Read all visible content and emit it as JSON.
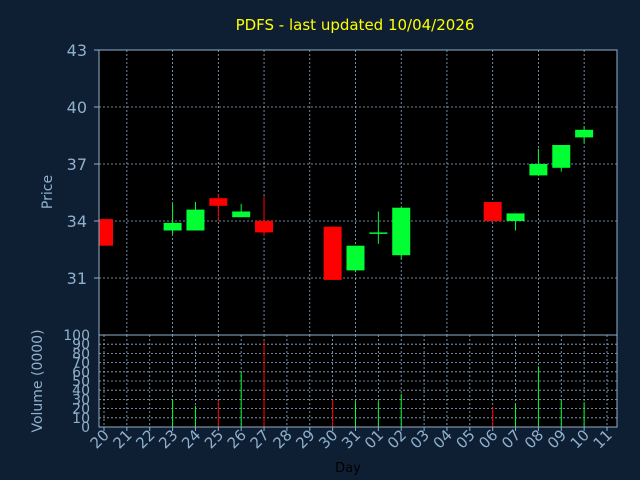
{
  "chart_data": {
    "type": "candlestick",
    "title": "PDFS - last updated 10/04/2026",
    "price_panel": {
      "ylabel": "Price",
      "ylim": [
        28,
        43
      ],
      "yticks": [
        31,
        34,
        37,
        40,
        43
      ]
    },
    "volume_panel": {
      "ylabel": "Volume (0000)",
      "ylim": [
        0,
        100
      ],
      "yticks": [
        0,
        10,
        20,
        30,
        40,
        50,
        60,
        70,
        80,
        90,
        100
      ]
    },
    "xlabel": "Day",
    "x_ticks": [
      "20",
      "21",
      "22",
      "23",
      "24",
      "25",
      "26",
      "27",
      "28",
      "29",
      "30",
      "31",
      "01",
      "02",
      "03",
      "04",
      "05",
      "06",
      "07",
      "08",
      "09",
      "10",
      "11"
    ],
    "candles": [
      {
        "day": "20",
        "open": 34.1,
        "high": 34.1,
        "low": 32.7,
        "close": 32.7,
        "volume": 0
      },
      {
        "day": "23",
        "open": 33.5,
        "high": 34.9,
        "low": 33.3,
        "close": 33.9,
        "volume": 30
      },
      {
        "day": "24",
        "open": 33.5,
        "high": 35.0,
        "low": 33.5,
        "close": 34.6,
        "volume": 23
      },
      {
        "day": "25",
        "open": 35.2,
        "high": 35.4,
        "low": 34.0,
        "close": 34.8,
        "volume": 28
      },
      {
        "day": "26",
        "open": 34.2,
        "high": 34.9,
        "low": 34.2,
        "close": 34.5,
        "volume": 60
      },
      {
        "day": "27",
        "open": 34.0,
        "high": 35.3,
        "low": 33.2,
        "close": 33.4,
        "volume": 93
      },
      {
        "day": "30",
        "open": 33.7,
        "high": 33.7,
        "low": 30.9,
        "close": 30.9,
        "volume": 30
      },
      {
        "day": "31",
        "open": 31.4,
        "high": 32.7,
        "low": 31.3,
        "close": 32.7,
        "volume": 28
      },
      {
        "day": "01",
        "open": 33.4,
        "high": 34.5,
        "low": 32.8,
        "close": 33.4,
        "volume": 28
      },
      {
        "day": "02",
        "open": 32.2,
        "high": 34.7,
        "low": 32.0,
        "close": 34.7,
        "volume": 36
      },
      {
        "day": "06",
        "open": 35.0,
        "high": 35.0,
        "low": 34.0,
        "close": 34.0,
        "volume": 22
      },
      {
        "day": "07",
        "open": 34.0,
        "high": 34.4,
        "low": 33.5,
        "close": 34.4,
        "volume": 25
      },
      {
        "day": "08",
        "open": 36.4,
        "high": 37.8,
        "low": 36.4,
        "close": 37.0,
        "volume": 66
      },
      {
        "day": "09",
        "open": 36.8,
        "high": 38.0,
        "low": 36.6,
        "close": 38.0,
        "volume": 29
      },
      {
        "day": "10",
        "open": 38.4,
        "high": 39.0,
        "low": 38.1,
        "close": 38.8,
        "volume": 27
      }
    ],
    "colors": {
      "up": "#00ff33",
      "down": "#ff0000",
      "background": "#0f1f33",
      "plot_bg": "#000000",
      "grid": "#8fb0cc",
      "title": "#ffff00",
      "axis_text": "#8fb0cc"
    },
    "grid": true,
    "legend": "none"
  }
}
